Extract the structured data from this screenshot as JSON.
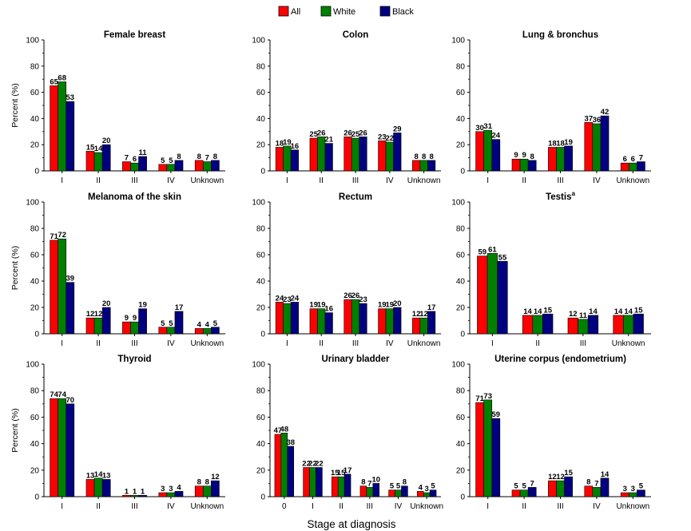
{
  "legend": [
    {
      "name": "All",
      "color": "#ff0000"
    },
    {
      "name": "White",
      "color": "#008000"
    },
    {
      "name": "Black",
      "color": "#000080"
    }
  ],
  "xlabel": "Stage at diagnosis",
  "chart_data": [
    {
      "type": "bar",
      "title": "Female breast",
      "ylabel": "Percent (%)",
      "ylim": [
        0,
        100
      ],
      "yticks": [
        0,
        20,
        40,
        60,
        80,
        100
      ],
      "categories": [
        "I",
        "II",
        "III",
        "IV",
        "Unknown"
      ],
      "series": [
        {
          "name": "All",
          "values": [
            65,
            15,
            7,
            5,
            8
          ]
        },
        {
          "name": "White",
          "values": [
            68,
            14,
            6,
            5,
            7
          ]
        },
        {
          "name": "Black",
          "values": [
            53,
            20,
            11,
            8,
            8
          ]
        }
      ]
    },
    {
      "type": "bar",
      "title": "Colon",
      "ylabel": "",
      "ylim": [
        0,
        100
      ],
      "yticks": [
        0,
        20,
        40,
        60,
        80,
        100
      ],
      "categories": [
        "I",
        "II",
        "III",
        "IV",
        "Unknown"
      ],
      "series": [
        {
          "name": "All",
          "values": [
            18,
            25,
            26,
            23,
            8
          ]
        },
        {
          "name": "White",
          "values": [
            19,
            26,
            25,
            22,
            8
          ]
        },
        {
          "name": "Black",
          "values": [
            16,
            21,
            26,
            29,
            8
          ]
        }
      ]
    },
    {
      "type": "bar",
      "title": "Lung & bronchus",
      "ylabel": "",
      "ylim": [
        0,
        100
      ],
      "yticks": [
        0,
        20,
        40,
        60,
        80,
        100
      ],
      "categories": [
        "I",
        "II",
        "III",
        "IV",
        "Unknown"
      ],
      "series": [
        {
          "name": "All",
          "values": [
            30,
            9,
            18,
            37,
            6
          ]
        },
        {
          "name": "White",
          "values": [
            31,
            9,
            18,
            36,
            6
          ]
        },
        {
          "name": "Black",
          "values": [
            24,
            8,
            19,
            42,
            7
          ]
        }
      ]
    },
    {
      "type": "bar",
      "title": "Melanoma of the skin",
      "ylabel": "Percent (%)",
      "ylim": [
        0,
        100
      ],
      "yticks": [
        0,
        20,
        40,
        60,
        80,
        100
      ],
      "categories": [
        "I",
        "II",
        "III",
        "IV",
        "Unknown"
      ],
      "series": [
        {
          "name": "All",
          "values": [
            71,
            12,
            9,
            5,
            4
          ]
        },
        {
          "name": "White",
          "values": [
            72,
            12,
            9,
            5,
            4
          ]
        },
        {
          "name": "Black",
          "values": [
            39,
            20,
            19,
            17,
            5
          ]
        }
      ]
    },
    {
      "type": "bar",
      "title": "Rectum",
      "ylabel": "",
      "ylim": [
        0,
        100
      ],
      "yticks": [
        0,
        20,
        40,
        60,
        80,
        100
      ],
      "categories": [
        "I",
        "II",
        "III",
        "IV",
        "Unknown"
      ],
      "series": [
        {
          "name": "All",
          "values": [
            24,
            19,
            26,
            19,
            12
          ]
        },
        {
          "name": "White",
          "values": [
            23,
            19,
            26,
            19,
            12
          ]
        },
        {
          "name": "Black",
          "values": [
            24,
            16,
            23,
            20,
            17
          ]
        }
      ]
    },
    {
      "type": "bar",
      "title": "Testis",
      "title_sup": "a",
      "ylabel": "",
      "ylim": [
        0,
        100
      ],
      "yticks": [
        0,
        20,
        40,
        60,
        80,
        100
      ],
      "categories": [
        "I",
        "II",
        "III",
        "Unknown"
      ],
      "series": [
        {
          "name": "All",
          "values": [
            59,
            14,
            12,
            14
          ]
        },
        {
          "name": "White",
          "values": [
            61,
            14,
            11,
            14
          ]
        },
        {
          "name": "Black",
          "values": [
            55,
            15,
            14,
            15
          ]
        }
      ]
    },
    {
      "type": "bar",
      "title": "Thyroid",
      "ylabel": "Percent (%)",
      "ylim": [
        0,
        100
      ],
      "yticks": [
        0,
        20,
        40,
        60,
        80,
        100
      ],
      "categories": [
        "I",
        "II",
        "III",
        "IV",
        "Unknown"
      ],
      "series": [
        {
          "name": "All",
          "values": [
            74,
            13,
            1,
            3,
            8
          ]
        },
        {
          "name": "White",
          "values": [
            74,
            14,
            1,
            3,
            8
          ]
        },
        {
          "name": "Black",
          "values": [
            70,
            13,
            1,
            4,
            12
          ]
        }
      ]
    },
    {
      "type": "bar",
      "title": "Urinary bladder",
      "ylabel": "",
      "ylim": [
        0,
        100
      ],
      "yticks": [
        0,
        20,
        40,
        60,
        80,
        100
      ],
      "categories": [
        "0",
        "I",
        "II",
        "III",
        "IV",
        "Unknown"
      ],
      "series": [
        {
          "name": "All",
          "values": [
            47,
            22,
            15,
            8,
            5,
            4
          ]
        },
        {
          "name": "White",
          "values": [
            48,
            22,
            15,
            7,
            5,
            3
          ]
        },
        {
          "name": "Black",
          "values": [
            38,
            22,
            17,
            10,
            8,
            5
          ]
        }
      ]
    },
    {
      "type": "bar",
      "title": "Uterine corpus (endometrium)",
      "ylabel": "",
      "ylim": [
        0,
        100
      ],
      "yticks": [
        0,
        20,
        40,
        60,
        80,
        100
      ],
      "categories": [
        "I",
        "II",
        "III",
        "IV",
        "Unknown"
      ],
      "series": [
        {
          "name": "All",
          "values": [
            71,
            5,
            12,
            8,
            3
          ]
        },
        {
          "name": "White",
          "values": [
            73,
            5,
            12,
            7,
            3
          ]
        },
        {
          "name": "Black",
          "values": [
            59,
            7,
            15,
            14,
            5
          ]
        }
      ]
    }
  ]
}
